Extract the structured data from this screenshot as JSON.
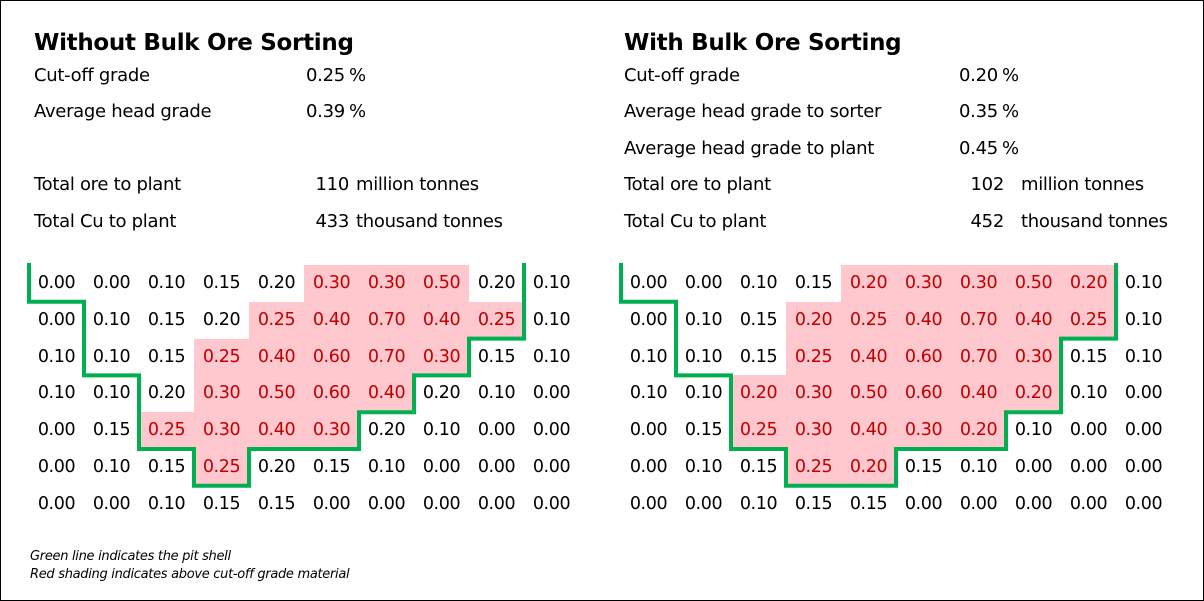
{
  "panels": [
    {
      "title": "Without Bulk Ore Sorting",
      "params": [
        {
          "label": "Cut-off grade",
          "value": "0.25",
          "unit": "%"
        },
        {
          "label": "Average head grade",
          "value": "0.39",
          "unit": "%"
        }
      ],
      "totals": [
        {
          "label": "Total ore to plant",
          "value": "110",
          "unit": "million tonnes"
        },
        {
          "label": "Total Cu to plant",
          "value": "433",
          "unit": "thousand tonnes"
        }
      ],
      "grid": [
        [
          "0.00",
          "0.00",
          "0.10",
          "0.15",
          "0.20",
          "0.30",
          "0.30",
          "0.50",
          "0.20",
          "0.10"
        ],
        [
          "0.00",
          "0.10",
          "0.15",
          "0.20",
          "0.25",
          "0.40",
          "0.70",
          "0.40",
          "0.25",
          "0.10"
        ],
        [
          "0.10",
          "0.10",
          "0.15",
          "0.25",
          "0.40",
          "0.60",
          "0.70",
          "0.30",
          "0.15",
          "0.10"
        ],
        [
          "0.10",
          "0.10",
          "0.20",
          "0.30",
          "0.50",
          "0.60",
          "0.40",
          "0.20",
          "0.10",
          "0.00"
        ],
        [
          "0.00",
          "0.15",
          "0.25",
          "0.30",
          "0.40",
          "0.30",
          "0.20",
          "0.10",
          "0.00",
          "0.00"
        ],
        [
          "0.00",
          "0.10",
          "0.15",
          "0.25",
          "0.20",
          "0.15",
          "0.10",
          "0.00",
          "0.00",
          "0.00"
        ],
        [
          "0.00",
          "0.00",
          "0.10",
          "0.15",
          "0.15",
          "0.00",
          "0.00",
          "0.00",
          "0.00",
          "0.00"
        ]
      ]
    },
    {
      "title": "With Bulk Ore Sorting",
      "params": [
        {
          "label": "Cut-off grade",
          "value": "0.20",
          "unit": "%"
        },
        {
          "label": "Average head grade to sorter",
          "value": "0.35",
          "unit": "%"
        },
        {
          "label": "Average head grade to plant",
          "value": "0.45",
          "unit": "%"
        }
      ],
      "totals": [
        {
          "label": "Total ore to plant",
          "value": "102",
          "unit": "million tonnes"
        },
        {
          "label": "Total Cu to plant",
          "value": "452",
          "unit": "thousand tonnes"
        }
      ],
      "grid": [
        [
          "0.00",
          "0.00",
          "0.10",
          "0.15",
          "0.20",
          "0.30",
          "0.30",
          "0.50",
          "0.20",
          "0.10"
        ],
        [
          "0.00",
          "0.10",
          "0.15",
          "0.20",
          "0.25",
          "0.40",
          "0.70",
          "0.40",
          "0.25",
          "0.10"
        ],
        [
          "0.10",
          "0.10",
          "0.15",
          "0.25",
          "0.40",
          "0.60",
          "0.70",
          "0.30",
          "0.15",
          "0.10"
        ],
        [
          "0.10",
          "0.10",
          "0.20",
          "0.30",
          "0.50",
          "0.60",
          "0.40",
          "0.20",
          "0.10",
          "0.00"
        ],
        [
          "0.00",
          "0.15",
          "0.25",
          "0.30",
          "0.40",
          "0.30",
          "0.20",
          "0.10",
          "0.00",
          "0.00"
        ],
        [
          "0.00",
          "0.10",
          "0.15",
          "0.25",
          "0.20",
          "0.15",
          "0.10",
          "0.00",
          "0.00",
          "0.00"
        ],
        [
          "0.00",
          "0.00",
          "0.10",
          "0.15",
          "0.15",
          "0.00",
          "0.00",
          "0.00",
          "0.00",
          "0.00"
        ]
      ]
    }
  ],
  "notes": [
    "Green line indicates the pit shell",
    "Red shading indicates above cut-off grade material"
  ]
}
